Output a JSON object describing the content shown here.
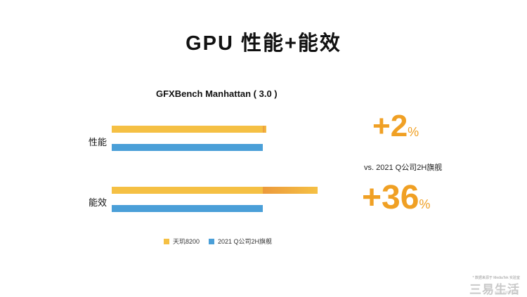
{
  "title": "GPU 性能+能效",
  "chart_data": {
    "type": "bar",
    "orientation": "horizontal",
    "title": "GFXBench Manhattan ( 3.0 )",
    "categories": [
      "性能",
      "能效"
    ],
    "series": [
      {
        "name": "天玑8200",
        "values": [
          102,
          136
        ],
        "color": "#f5c044",
        "gain_color": "#ec9a3c"
      },
      {
        "name": "2021 Q公司2H旗舰",
        "values": [
          100,
          100
        ],
        "color": "#4a9fd8"
      }
    ],
    "xlim": [
      0,
      136
    ],
    "gains": [
      {
        "value": "+2",
        "unit": "%"
      },
      {
        "value": "+36",
        "unit": "%"
      }
    ],
    "comparison_text": "vs. 2021 Q公司2H旗舰"
  },
  "footnote": "* 数据来源于 MediaTek 实验室",
  "watermark": "三易生活",
  "watermark_url": "www.eolife.net"
}
